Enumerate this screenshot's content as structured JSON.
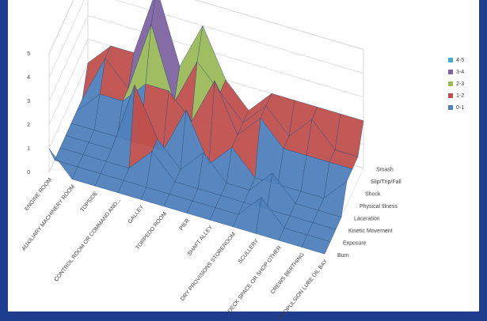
{
  "chart_data": {
    "type": "surface",
    "categories": [
      "ENGINE ROOM",
      "AUXILIARY MACHINERY ROOM",
      "TOPSIDE",
      "CONTROL ROOM OR COMMAND AND...",
      "GALLEY",
      "TORPEDO ROOM",
      "PIER",
      "SHAFT ALLEY",
      "DRY PROVISIONS STOREROOM",
      "SCULLERY",
      "DECK SPACE OR SHOP OTHER",
      "CREWS BERTHING",
      "PROPULSION LUBE OIL BAY"
    ],
    "series": [
      {
        "name": "Burn",
        "values": [
          1,
          0,
          0,
          0,
          0,
          0,
          0,
          0,
          0,
          0,
          0,
          0,
          0
        ]
      },
      {
        "name": "Exposure",
        "values": [
          0,
          0,
          0,
          0,
          0,
          0,
          0,
          0,
          0,
          1,
          0,
          0,
          0
        ]
      },
      {
        "name": "Kinetic Movement",
        "values": [
          0,
          0,
          0,
          0,
          1,
          0,
          0,
          0,
          0,
          0,
          0,
          0,
          0
        ]
      },
      {
        "name": "Laceration",
        "values": [
          0,
          0,
          0,
          3,
          1,
          0,
          1,
          0,
          0,
          1,
          0,
          0,
          0
        ]
      },
      {
        "name": "Physical Illness",
        "values": [
          0,
          0,
          0,
          0,
          0,
          2,
          0,
          1,
          0,
          0,
          0,
          0,
          1
        ]
      },
      {
        "name": "Shock",
        "values": [
          0,
          1,
          1,
          2,
          2,
          1,
          3,
          1,
          2,
          1,
          1,
          1,
          1
        ]
      },
      {
        "name": "Slip/Trip/Fall",
        "values": [
          0,
          2,
          1,
          4,
          1,
          3,
          2,
          1,
          2,
          1,
          2,
          1,
          1
        ]
      },
      {
        "name": "Smash",
        "values": [
          1,
          2,
          2,
          5,
          2,
          4,
          2,
          1,
          2,
          2,
          2,
          2,
          2
        ]
      }
    ],
    "zlim": [
      0,
      5
    ],
    "zticks": [
      0,
      1,
      2,
      3,
      4,
      5
    ],
    "grid": true,
    "bands": [
      {
        "name": "4-5",
        "color": "#4bacc6"
      },
      {
        "name": "3-4",
        "color": "#8064a2"
      },
      {
        "name": "2-3",
        "color": "#9bbb59"
      },
      {
        "name": "1-2",
        "color": "#c0504d"
      },
      {
        "name": "0-1",
        "color": "#4f81bd"
      }
    ]
  }
}
